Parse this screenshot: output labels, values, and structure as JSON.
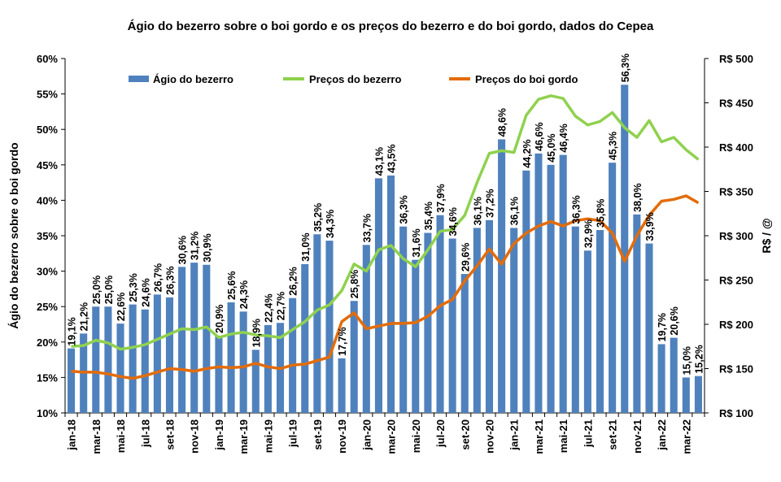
{
  "chart_data": {
    "type": "bar+line",
    "title": "Ágio do bezerro sobre o boi gordo e os preços do bezerro e do boi gordo, dados do Cepea",
    "ylabel_left": "Ágio do bezerro sobre o boi gordo",
    "ylabel_right": "R$ / @",
    "ylim_left": [
      10,
      60
    ],
    "ylim_right": [
      100,
      500
    ],
    "left_ticks": [
      "10%",
      "15%",
      "20%",
      "25%",
      "30%",
      "35%",
      "40%",
      "45%",
      "50%",
      "55%",
      "60%"
    ],
    "right_ticks": [
      "R$ 100",
      "R$ 150",
      "R$ 200",
      "R$ 250",
      "R$ 300",
      "R$ 350",
      "R$ 400",
      "R$ 450",
      "R$ 500"
    ],
    "categories": [
      "jan-18",
      "fev-18",
      "mar-18",
      "abr-18",
      "mai-18",
      "jun-18",
      "jul-18",
      "ago-18",
      "set-18",
      "out-18",
      "nov-18",
      "dez-18",
      "jan-19",
      "fev-19",
      "mar-19",
      "abr-19",
      "mai-19",
      "jun-19",
      "jul-19",
      "ago-19",
      "set-19",
      "out-19",
      "nov-19",
      "dez-19",
      "jan-20",
      "fev-20",
      "mar-20",
      "abr-20",
      "mai-20",
      "jun-20",
      "jul-20",
      "ago-20",
      "set-20",
      "out-20",
      "nov-20",
      "dez-20",
      "jan-21",
      "fev-21",
      "mar-21",
      "abr-21",
      "mai-21",
      "jun-21",
      "jul-21",
      "ago-21",
      "set-21",
      "out-21",
      "nov-21",
      "dez-21",
      "jan-22",
      "fev-22",
      "mar-22",
      "abr-22"
    ],
    "xtick_labels_shown": [
      "jan-18",
      "mar-18",
      "mai-18",
      "jul-18",
      "set-18",
      "nov-18",
      "jan-19",
      "mar-19",
      "mai-19",
      "jul-19",
      "set-19",
      "nov-19",
      "jan-20",
      "mar-20",
      "mai-20",
      "jul-20",
      "set-20",
      "nov-20",
      "jan-21",
      "mar-21",
      "mai-21",
      "jul-21",
      "set-21",
      "nov-21",
      "jan-22",
      "mar-22"
    ],
    "series": [
      {
        "name": "Ágio do bezerro",
        "type": "bar",
        "axis": "left",
        "color": "#4f81bd",
        "values": [
          19.1,
          21.2,
          25.0,
          25.0,
          22.6,
          25.3,
          24.6,
          26.7,
          26.3,
          30.6,
          31.2,
          30.9,
          20.9,
          25.6,
          24.3,
          18.9,
          22.4,
          22.7,
          26.2,
          31.0,
          35.2,
          34.3,
          17.7,
          25.8,
          33.7,
          43.1,
          43.5,
          36.3,
          31.6,
          35.4,
          37.9,
          34.6,
          29.6,
          36.1,
          37.2,
          48.6,
          36.1,
          44.2,
          46.6,
          45.0,
          46.4,
          36.3,
          32.9,
          35.8,
          45.3,
          56.3,
          38.0,
          33.9,
          19.7,
          20.6,
          15.0,
          15.2
        ],
        "labels": [
          "19,1%",
          "21,2%",
          "25,0%",
          "25,0%",
          "22,6%",
          "25,3%",
          "24,6%",
          "26,7%",
          "26,3%",
          "30,6%",
          "31,2%",
          "30,9%",
          "20,9%",
          "25,6%",
          "24,3%",
          "18,9%",
          "22,4%",
          "22,7%",
          "26,2%",
          "31,0%",
          "35,2%",
          "34,3%",
          "17,7%",
          "25,8%",
          "33,7%",
          "43,1%",
          "43,5%",
          "36,3%",
          "31,6%",
          "35,4%",
          "37,9%",
          "34,6%",
          "29,6%",
          "36,1%",
          "37,2%",
          "48,6%",
          "36,1%",
          "44,2%",
          "46,6%",
          "45,0%",
          "46,4%",
          "36,3%",
          "32,9%",
          "35,8%",
          "45,3%",
          "56,3%",
          "38,0%",
          "33,9%",
          "19,7%",
          "20,6%",
          "15,0%",
          "15,2%"
        ]
      },
      {
        "name": "Preços do bezerro",
        "type": "line",
        "axis": "right",
        "color": "#8fd14f",
        "values": [
          175,
          176,
          182,
          179,
          172,
          174,
          177,
          183,
          189,
          195,
          194,
          197,
          185,
          189,
          191,
          188,
          187,
          185,
          194,
          203,
          216,
          222,
          238,
          268,
          260,
          284,
          289,
          274,
          265,
          284,
          305,
          307,
          323,
          360,
          393,
          396,
          394,
          436,
          454,
          458,
          455,
          435,
          425,
          429,
          439,
          422,
          411,
          430,
          406,
          411,
          397,
          386
        ]
      },
      {
        "name": "Preços do boi gordo",
        "type": "line",
        "axis": "right",
        "color": "#e36c0a",
        "values": [
          147,
          146,
          146,
          144,
          141,
          139,
          142,
          146,
          150,
          149,
          147,
          150,
          152,
          151,
          152,
          156,
          152,
          150,
          154,
          155,
          159,
          163,
          203,
          213,
          195,
          198,
          201,
          201,
          202,
          209,
          221,
          228,
          249,
          266,
          285,
          268,
          291,
          303,
          311,
          316,
          311,
          317,
          319,
          317,
          303,
          271,
          300,
          323,
          339,
          341,
          345,
          337
        ]
      }
    ],
    "legend_position": "top-inside",
    "grid": false
  }
}
